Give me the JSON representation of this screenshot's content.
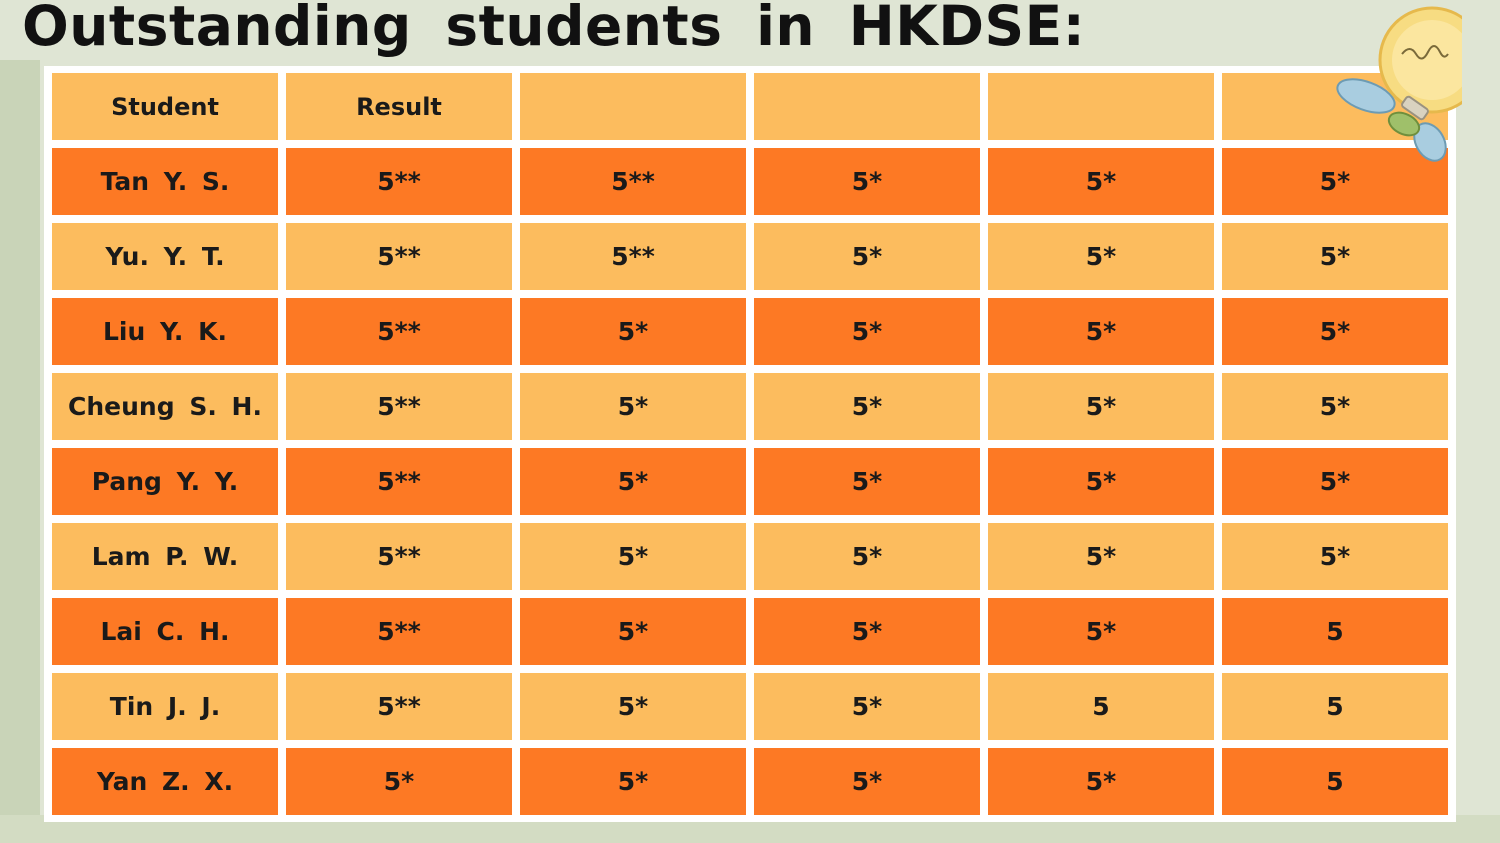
{
  "title": "Outstanding students in HKDSE:",
  "table": {
    "headers": [
      "Student",
      "Result",
      "",
      "",
      "",
      ""
    ],
    "rows": [
      [
        "Tan Y. S.",
        "5**",
        "5**",
        "5*",
        "5*",
        "5*"
      ],
      [
        "Yu. Y. T.",
        "5**",
        "5**",
        "5*",
        "5*",
        "5*"
      ],
      [
        "Liu Y. K.",
        "5**",
        "5*",
        "5*",
        "5*",
        "5*"
      ],
      [
        "Cheung S. H.",
        "5**",
        "5*",
        "5*",
        "5*",
        "5*"
      ],
      [
        "Pang Y. Y.",
        "5**",
        "5*",
        "5*",
        "5*",
        "5*"
      ],
      [
        "Lam P. W.",
        "5**",
        "5*",
        "5*",
        "5*",
        "5*"
      ],
      [
        "Lai C. H.",
        "5**",
        "5*",
        "5*",
        "5*",
        "5"
      ],
      [
        "Tin J. J.",
        "5**",
        "5*",
        "5*",
        "5",
        "5"
      ],
      [
        "Yan Z. X.",
        "5*",
        "5*",
        "5*",
        "5*",
        "5"
      ]
    ]
  },
  "colors": {
    "light_row": "#fcbc5e",
    "dark_row": "#fd7924",
    "background": "#dfe5d4"
  },
  "decoration": {
    "icon": "lightbulb-icon"
  }
}
